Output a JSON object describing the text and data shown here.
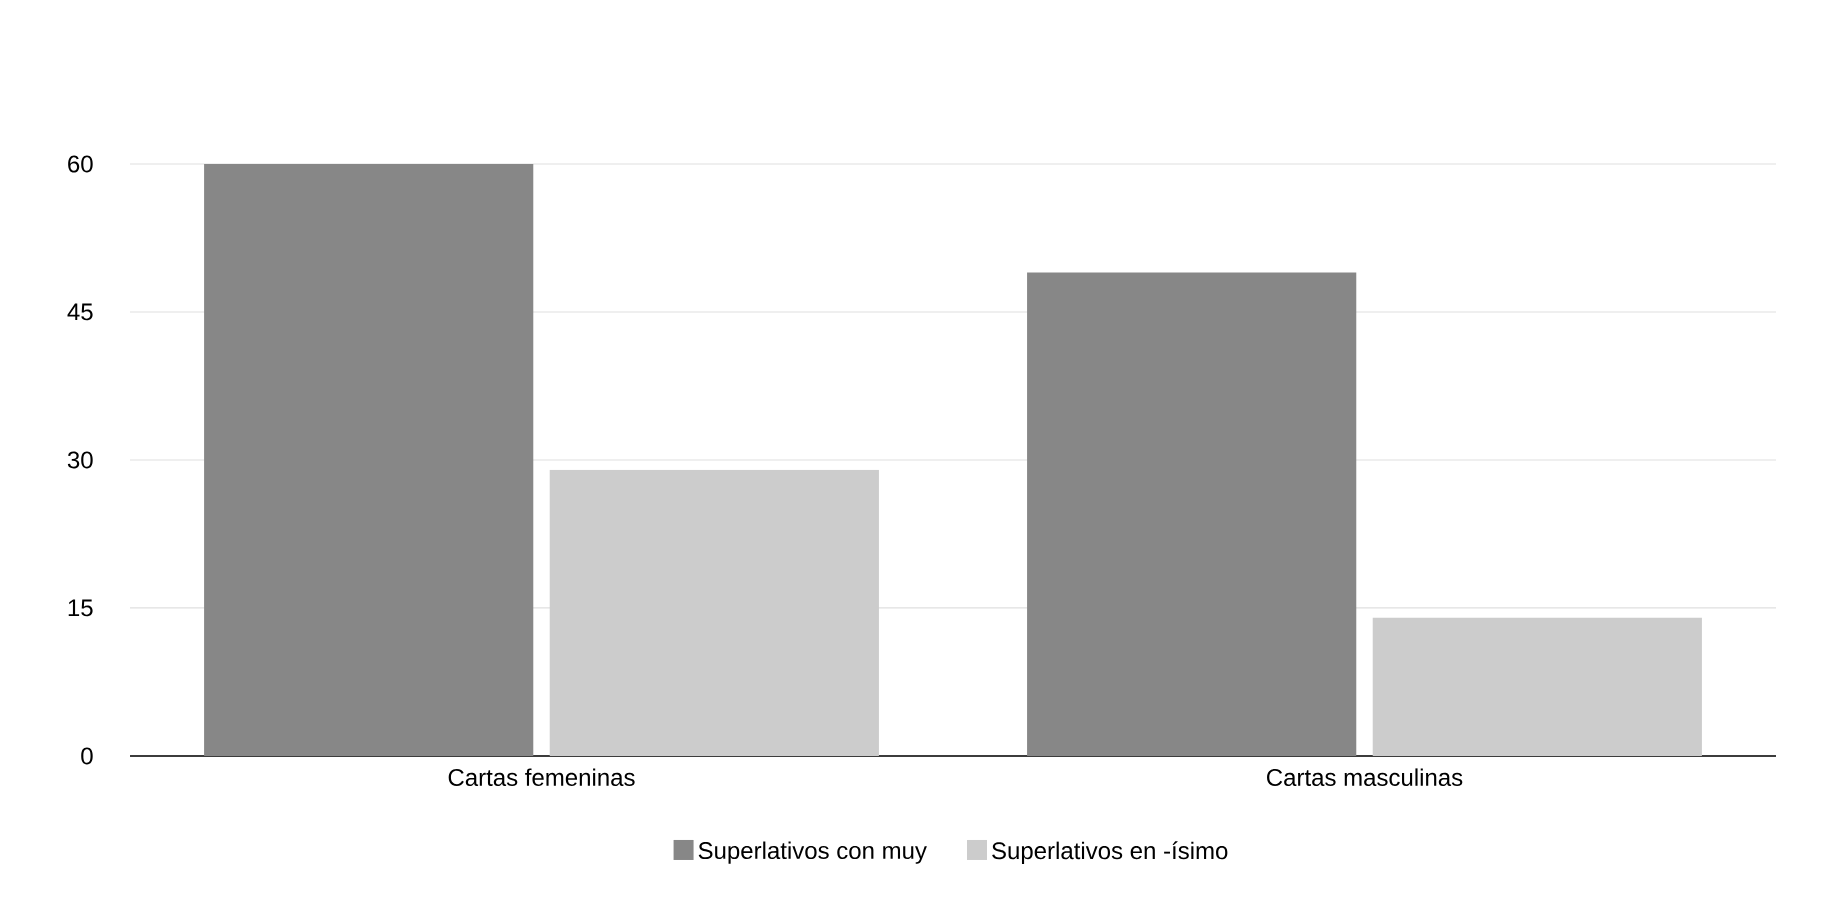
{
  "chart_data": {
    "type": "bar",
    "categories": [
      "Cartas femeninas",
      "Cartas masculinas"
    ],
    "series": [
      {
        "name": "Superlativos con muy",
        "color": "#878787",
        "values": [
          60,
          49
        ]
      },
      {
        "name": "Superlativos en -ísimo",
        "color": "#cccccc",
        "values": [
          29,
          14
        ]
      }
    ],
    "ylim": [
      0,
      60
    ],
    "yticks": [
      0,
      15,
      30,
      45,
      60
    ],
    "grid": "y",
    "legend": "bottom"
  }
}
